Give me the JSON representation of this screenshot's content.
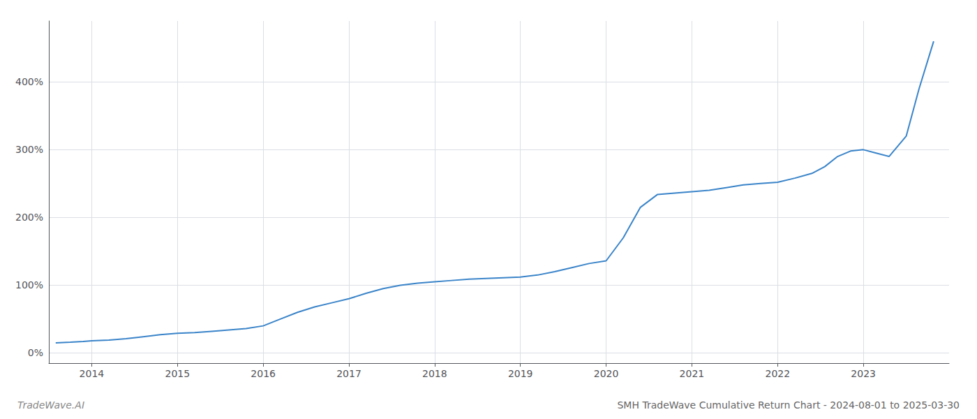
{
  "chart_data": {
    "type": "line",
    "title": "SMH TradeWave Cumulative Return Chart - 2024-08-01 to 2025-03-30",
    "annotations": [
      "TradeWave.AI"
    ],
    "x": [
      2013.58,
      2013.75,
      2013.9,
      2014.0,
      2014.2,
      2014.4,
      2014.6,
      2014.8,
      2015.0,
      2015.2,
      2015.4,
      2015.6,
      2015.8,
      2016.0,
      2016.2,
      2016.4,
      2016.6,
      2016.8,
      2017.0,
      2017.2,
      2017.4,
      2017.6,
      2017.8,
      2018.0,
      2018.2,
      2018.4,
      2018.6,
      2018.8,
      2019.0,
      2019.2,
      2019.4,
      2019.6,
      2019.8,
      2020.0,
      2020.2,
      2020.4,
      2020.6,
      2020.8,
      2021.0,
      2021.2,
      2021.4,
      2021.6,
      2021.8,
      2022.0,
      2022.2,
      2022.4,
      2022.55,
      2022.7,
      2022.85,
      2023.0,
      2023.15,
      2023.3,
      2023.5,
      2023.65,
      2023.82
    ],
    "values": [
      15,
      16,
      17,
      18,
      19,
      21,
      24,
      27,
      29,
      30,
      32,
      34,
      36,
      40,
      50,
      60,
      68,
      74,
      80,
      88,
      95,
      100,
      103,
      105,
      107,
      109,
      110,
      111,
      112,
      115,
      120,
      126,
      132,
      136,
      170,
      215,
      234,
      236,
      238,
      240,
      244,
      248,
      250,
      252,
      258,
      265,
      275,
      290,
      298,
      300,
      295,
      290,
      320,
      390,
      460
    ],
    "color": "#3a84c9",
    "xlim": [
      2013.5,
      2024.0
    ],
    "xticks": [
      2014,
      2015,
      2016,
      2017,
      2018,
      2019,
      2020,
      2021,
      2022,
      2023
    ],
    "ylim": [
      -15,
      490
    ],
    "yticks": [
      {
        "value": 0,
        "label": "0%"
      },
      {
        "value": 100,
        "label": "100%"
      },
      {
        "value": 200,
        "label": "200%"
      },
      {
        "value": 300,
        "label": "300%"
      },
      {
        "value": 400,
        "label": "400%"
      }
    ],
    "grid": true
  }
}
